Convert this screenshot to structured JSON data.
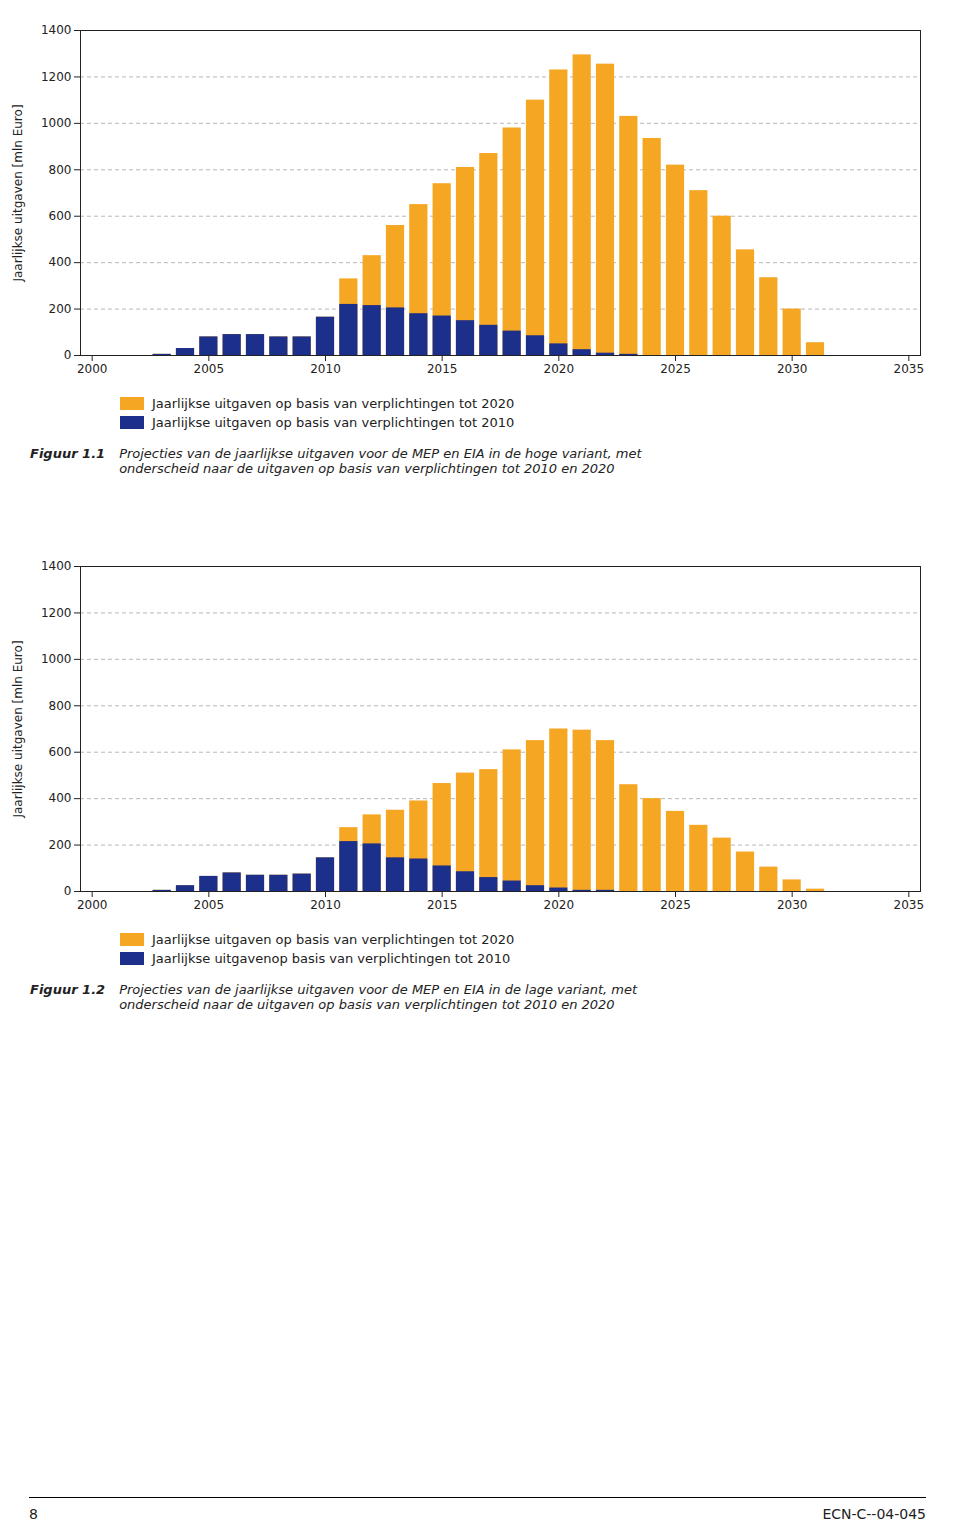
{
  "chart_data": [
    {
      "type": "bar",
      "x": [
        2003,
        2004,
        2005,
        2006,
        2007,
        2008,
        2009,
        2010,
        2011,
        2012,
        2013,
        2014,
        2015,
        2016,
        2017,
        2018,
        2019,
        2020,
        2021,
        2022,
        2023,
        2024,
        2025,
        2026,
        2027,
        2028,
        2029,
        2030,
        2031
      ],
      "series": [
        {
          "name": "Jaarlijkse uitgaven op basis van verplichtingen tot 2020",
          "color": "#F5A623",
          "values": [
            5,
            30,
            80,
            90,
            90,
            80,
            80,
            165,
            330,
            430,
            560,
            650,
            740,
            810,
            870,
            980,
            1100,
            1230,
            1295,
            1255,
            1030,
            935,
            820,
            710,
            600,
            455,
            335,
            200,
            55
          ]
        },
        {
          "name": "Jaarlijkse uitgaven op basis van verplichtingen tot 2010",
          "color": "#1C2F8A",
          "values": [
            5,
            30,
            80,
            90,
            90,
            80,
            80,
            165,
            220,
            215,
            205,
            180,
            170,
            150,
            130,
            105,
            85,
            50,
            25,
            10,
            5,
            0,
            0,
            0,
            0,
            0,
            0,
            0,
            0
          ]
        }
      ],
      "ylabel": "Jaarlijkse uitgaven [mln Euro]",
      "xlim": [
        1999.5,
        2035.5
      ],
      "xticks": [
        2000,
        2005,
        2010,
        2015,
        2020,
        2025,
        2030,
        2035
      ],
      "ylim": [
        0,
        1400
      ],
      "yticks": [
        0,
        200,
        400,
        600,
        800,
        1000,
        1200,
        1400
      ],
      "grid": true,
      "annotations": [
        "Figuur 1.1",
        "Projecties van de jaarlijkse uitgaven voor de MEP en EIA in de hoge variant, met\nonderscheid naar de uitgaven op basis van verplichtingen tot 2010 en 2020"
      ]
    },
    {
      "type": "bar",
      "x": [
        2003,
        2004,
        2005,
        2006,
        2007,
        2008,
        2009,
        2010,
        2011,
        2012,
        2013,
        2014,
        2015,
        2016,
        2017,
        2018,
        2019,
        2020,
        2021,
        2022,
        2023,
        2024,
        2025,
        2026,
        2027,
        2028,
        2029,
        2030,
        2031
      ],
      "series": [
        {
          "name": "Jaarlijkse uitgaven op basis van verplichtingen tot 2020",
          "color": "#F5A623",
          "values": [
            5,
            25,
            65,
            80,
            70,
            70,
            75,
            145,
            275,
            330,
            350,
            390,
            465,
            510,
            525,
            610,
            650,
            700,
            695,
            650,
            460,
            400,
            345,
            285,
            230,
            170,
            105,
            50,
            10
          ]
        },
        {
          "name": "Jaarlijkse uitgavenop basis van verplichtingen tot 2010",
          "color": "#1C2F8A",
          "values": [
            5,
            25,
            65,
            80,
            70,
            70,
            75,
            145,
            215,
            205,
            145,
            140,
            110,
            85,
            60,
            45,
            25,
            15,
            5,
            5,
            0,
            0,
            0,
            0,
            0,
            0,
            0,
            0,
            0
          ]
        }
      ],
      "ylabel": "Jaarlijkse uitgaven [mln Euro]",
      "xlim": [
        1999.5,
        2035.5
      ],
      "xticks": [
        2000,
        2005,
        2010,
        2015,
        2020,
        2025,
        2030,
        2035
      ],
      "ylim": [
        0,
        1400
      ],
      "yticks": [
        0,
        200,
        400,
        600,
        800,
        1000,
        1200,
        1400
      ],
      "grid": true,
      "annotations": [
        "Figuur 1.2",
        "Projecties van de jaarlijkse uitgaven voor de MEP en EIA in de lage variant, met\nonderscheid naar de uitgaven op basis van verplichtingen tot 2010 en 2020"
      ]
    }
  ],
  "annotations": [
    "8",
    "ECN-C--04-045"
  ]
}
